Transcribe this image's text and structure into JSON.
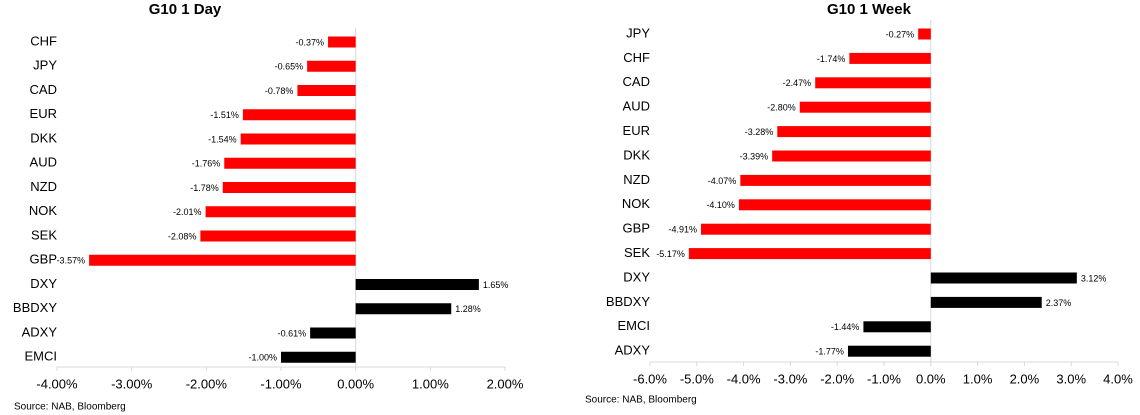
{
  "chart_data": [
    {
      "type": "bar",
      "orientation": "horizontal",
      "title": "G10 1 Day",
      "categories": [
        "CHF",
        "JPY",
        "CAD",
        "EUR",
        "DKK",
        "AUD",
        "NZD",
        "NOK",
        "SEK",
        "GBP",
        "DXY",
        "BBDXY",
        "ADXY",
        "EMCI"
      ],
      "values": [
        -0.37,
        -0.65,
        -0.78,
        -1.51,
        -1.54,
        -1.76,
        -1.78,
        -2.01,
        -2.08,
        -3.57,
        1.65,
        1.28,
        -0.61,
        -1.0
      ],
      "value_labels": [
        "-0.37%",
        "-0.65%",
        "-0.78%",
        "-1.51%",
        "-1.54%",
        "-1.76%",
        "-1.78%",
        "-2.01%",
        "-2.08%",
        "-3.57%",
        "1.65%",
        "1.28%",
        "-0.61%",
        "-1.00%"
      ],
      "colors": [
        "#ff0000",
        "#ff0000",
        "#ff0000",
        "#ff0000",
        "#ff0000",
        "#ff0000",
        "#ff0000",
        "#ff0000",
        "#ff0000",
        "#ff0000",
        "#000000",
        "#000000",
        "#000000",
        "#000000"
      ],
      "xlim": [
        -4,
        2
      ],
      "xticks": [
        {
          "value": -4,
          "label": "-4.00%"
        },
        {
          "value": -3,
          "label": "-3.00%"
        },
        {
          "value": -2,
          "label": "-2.00%"
        },
        {
          "value": -1,
          "label": "-1.00%"
        },
        {
          "value": 0,
          "label": "0.00%"
        },
        {
          "value": 1,
          "label": "1.00%"
        },
        {
          "value": 2,
          "label": "2.00%"
        }
      ],
      "source": "Source: NAB, Bloomberg"
    },
    {
      "type": "bar",
      "orientation": "horizontal",
      "title": "G10 1 Week",
      "categories": [
        "JPY",
        "CHF",
        "CAD",
        "AUD",
        "EUR",
        "DKK",
        "NZD",
        "NOK",
        "GBP",
        "SEK",
        "DXY",
        "BBDXY",
        "EMCI",
        "ADXY"
      ],
      "values": [
        -0.27,
        -1.74,
        -2.47,
        -2.8,
        -3.28,
        -3.39,
        -4.07,
        -4.1,
        -4.91,
        -5.17,
        3.12,
        2.37,
        -1.44,
        -1.77
      ],
      "value_labels": [
        "-0.27%",
        "-1.74%",
        "-2.47%",
        "-2.80%",
        "-3.28%",
        "-3.39%",
        "-4.07%",
        "-4.10%",
        "-4.91%",
        "-5.17%",
        "3.12%",
        "2.37%",
        "-1.44%",
        "-1.77%"
      ],
      "colors": [
        "#ff0000",
        "#ff0000",
        "#ff0000",
        "#ff0000",
        "#ff0000",
        "#ff0000",
        "#ff0000",
        "#ff0000",
        "#ff0000",
        "#ff0000",
        "#000000",
        "#000000",
        "#000000",
        "#000000"
      ],
      "xlim": [
        -6,
        4
      ],
      "xticks": [
        {
          "value": -6,
          "label": "-6.0%"
        },
        {
          "value": -5,
          "label": "-5.0%"
        },
        {
          "value": -4,
          "label": "-4.0%"
        },
        {
          "value": -3,
          "label": "-3.0%"
        },
        {
          "value": -2,
          "label": "-2.0%"
        },
        {
          "value": -1,
          "label": "-1.0%"
        },
        {
          "value": 0,
          "label": "0.0%"
        },
        {
          "value": 1,
          "label": "1.0%"
        },
        {
          "value": 2,
          "label": "2.0%"
        },
        {
          "value": 3,
          "label": "3.0%"
        },
        {
          "value": 4,
          "label": "4.0%"
        }
      ],
      "source": "Source: NAB, Bloomberg"
    }
  ]
}
